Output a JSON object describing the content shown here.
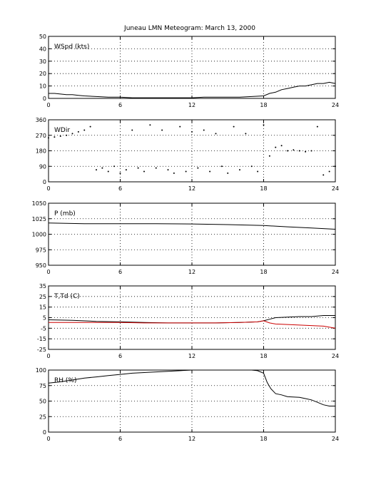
{
  "title": "Juneau LMN Meteogram:      March 13, 2000",
  "chart_data": [
    {
      "type": "line",
      "ylabel": "WSpd (kts)",
      "x_ticks": [
        0,
        6,
        12,
        18,
        24
      ],
      "xlim": [
        0,
        24
      ],
      "ylim": [
        0,
        50
      ],
      "y_ticks": [
        0,
        10,
        20,
        30,
        40,
        50
      ],
      "grid": true,
      "series": [
        {
          "color": "#000000",
          "x": [
            0,
            0.5,
            1,
            1.5,
            2,
            2.5,
            3,
            4,
            5,
            6,
            7,
            8,
            9,
            10,
            11,
            12,
            13,
            14,
            15,
            16,
            17,
            18,
            18.5,
            19,
            19.5,
            20,
            20.5,
            21,
            21.5,
            22,
            22.5,
            23,
            23.5,
            24
          ],
          "y": [
            4,
            4,
            3.5,
            3,
            3,
            2.5,
            2,
            1.5,
            1,
            1,
            0.5,
            0.5,
            0.5,
            0.5,
            0.5,
            0.5,
            1,
            1,
            1,
            1,
            1.5,
            2,
            4,
            5,
            7,
            8,
            9,
            10,
            10,
            11,
            12,
            12,
            13,
            12
          ]
        }
      ]
    },
    {
      "type": "scatter",
      "ylabel": "WDir",
      "x_ticks": [
        0,
        6,
        12,
        18,
        24
      ],
      "xlim": [
        0,
        24
      ],
      "ylim": [
        0,
        360
      ],
      "y_ticks": [
        0,
        90,
        180,
        270,
        360
      ],
      "grid": true,
      "series": [
        {
          "color": "#000000",
          "x": [
            0,
            0.5,
            1,
            1.5,
            2,
            2.5,
            3,
            3.5,
            4,
            4.5,
            5,
            5.5,
            6,
            6.5,
            7,
            7.5,
            8,
            8.5,
            9,
            9.5,
            10,
            10.5,
            11,
            11.5,
            12,
            12.5,
            13,
            13.5,
            14,
            14.5,
            15,
            15.5,
            16,
            16.5,
            17,
            17.5,
            18,
            18.5,
            19,
            19.5,
            20,
            20.5,
            21,
            21.5,
            22,
            22.5,
            23,
            23.5,
            24
          ],
          "y": [
            255,
            260,
            265,
            270,
            280,
            290,
            300,
            320,
            70,
            80,
            60,
            90,
            50,
            70,
            300,
            80,
            60,
            330,
            80,
            300,
            70,
            50,
            320,
            60,
            290,
            80,
            300,
            60,
            280,
            90,
            50,
            320,
            70,
            280,
            90,
            60,
            330,
            150,
            200,
            210,
            180,
            185,
            180,
            175,
            180,
            320,
            40,
            60,
            90
          ]
        }
      ]
    },
    {
      "type": "line",
      "ylabel": "P (mb)",
      "x_ticks": [
        0,
        6,
        12,
        18,
        24
      ],
      "xlim": [
        0,
        24
      ],
      "ylim": [
        950,
        1050
      ],
      "y_ticks": [
        950,
        975,
        1000,
        1025,
        1050
      ],
      "grid": true,
      "series": [
        {
          "color": "#000000",
          "x": [
            0,
            3,
            6,
            9,
            12,
            15,
            18,
            20,
            22,
            24
          ],
          "y": [
            1018,
            1017,
            1017,
            1017,
            1016.5,
            1015.5,
            1014,
            1012,
            1010,
            1008
          ]
        }
      ]
    },
    {
      "type": "line",
      "ylabel": "T,Td (C)",
      "x_ticks": [
        0,
        6,
        12,
        18,
        24
      ],
      "xlim": [
        0,
        24
      ],
      "ylim": [
        -25,
        35
      ],
      "y_ticks": [
        -25,
        -15,
        -5,
        5,
        15,
        25,
        35
      ],
      "grid": true,
      "series": [
        {
          "color": "#000000",
          "x": [
            0,
            2,
            4,
            6,
            8,
            10,
            12,
            14,
            16,
            17.5,
            18,
            18.5,
            19,
            20,
            21,
            22,
            23,
            24
          ],
          "y": [
            3,
            2.5,
            1.5,
            1,
            0.5,
            0,
            0,
            0,
            0.5,
            1,
            2,
            3.5,
            5,
            5.5,
            6,
            6,
            7,
            7
          ]
        },
        {
          "color": "#cc0000",
          "x": [
            0,
            2,
            4,
            6,
            8,
            10,
            12,
            14,
            16,
            17.5,
            18,
            18.5,
            19,
            20,
            21,
            22,
            23,
            24
          ],
          "y": [
            0.5,
            0.5,
            0.5,
            0.5,
            0,
            0,
            0,
            0,
            0.5,
            1,
            2,
            0,
            -1,
            -1.5,
            -2,
            -2.5,
            -3,
            -5
          ]
        }
      ]
    },
    {
      "type": "line",
      "ylabel": "RH (%)",
      "x_ticks": [
        0,
        6,
        12,
        18,
        24
      ],
      "xlim": [
        0,
        24
      ],
      "ylim": [
        0,
        100
      ],
      "y_ticks": [
        0,
        25,
        50,
        75,
        100
      ],
      "grid": true,
      "series": [
        {
          "color": "#000000",
          "x": [
            0,
            1,
            2,
            3,
            4,
            5,
            6,
            7,
            8,
            9,
            10,
            11,
            12,
            13,
            14,
            15,
            16,
            17,
            17.5,
            18,
            18.3,
            18.6,
            19,
            19.5,
            20,
            21,
            21.5,
            22,
            22.5,
            23,
            23.5,
            24
          ],
          "y": [
            79,
            81,
            84,
            87,
            89,
            91,
            93,
            95,
            96,
            97,
            98,
            99,
            100,
            100,
            100,
            100,
            100,
            100,
            99,
            95,
            80,
            70,
            62,
            60,
            57,
            56,
            54,
            52,
            48,
            44,
            42,
            42
          ]
        }
      ]
    }
  ]
}
